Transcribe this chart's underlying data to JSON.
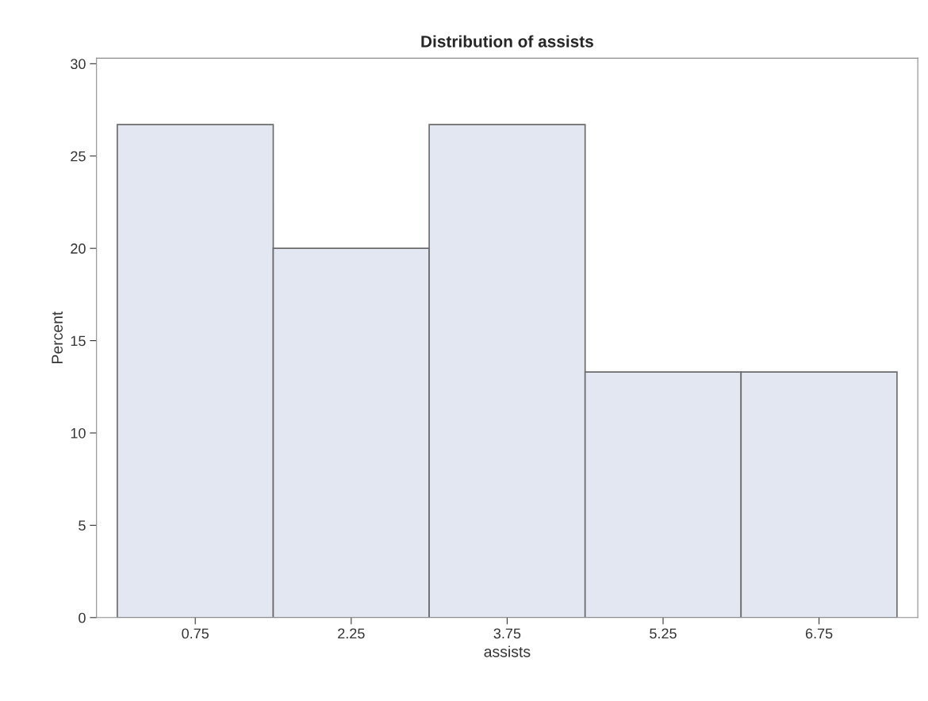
{
  "chart_data": {
    "type": "histogram",
    "title": "Distribution of assists",
    "xlabel": "assists",
    "ylabel": "Percent",
    "bins": [
      0,
      1.5,
      3,
      4.5,
      6,
      7.5
    ],
    "values": [
      26.7,
      20,
      26.7,
      13.3,
      13.3
    ],
    "color": "#e3e7f1",
    "xlim": [
      -0.2,
      7.7
    ],
    "xticks": [
      0.75,
      2.25,
      3.75,
      5.25,
      6.75
    ],
    "ylim": [
      0,
      30.3
    ],
    "yticks": [
      0,
      5,
      10,
      15,
      20,
      25,
      30
    ],
    "grid": false,
    "legend": false
  }
}
